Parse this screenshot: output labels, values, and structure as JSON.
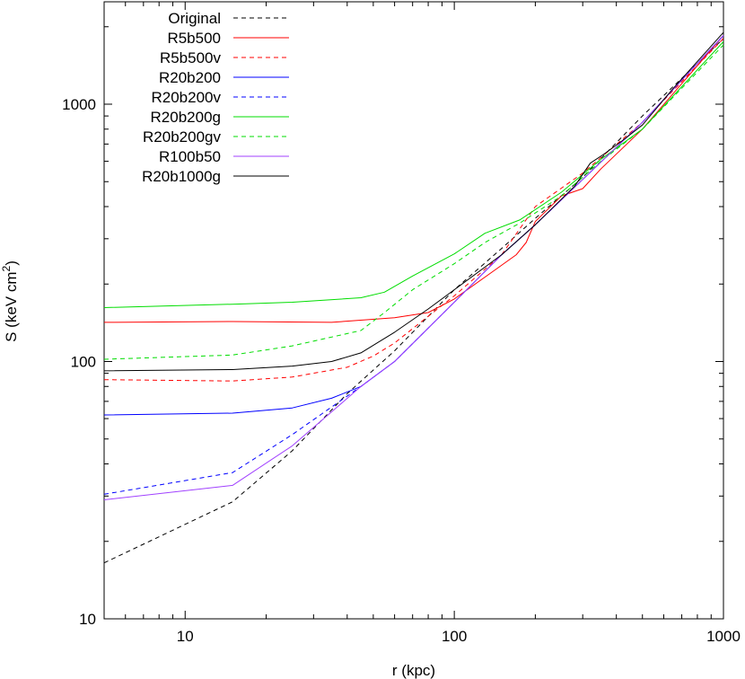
{
  "chart_data": {
    "type": "line",
    "xscale": "log",
    "yscale": "log",
    "xlim": [
      5,
      1000
    ],
    "ylim": [
      10,
      2500
    ],
    "xticks": [
      10,
      100,
      1000
    ],
    "yticks": [
      10,
      100,
      1000
    ],
    "xlabel": "r (kpc)",
    "ylabel": {
      "main": "S (keV cm",
      "sup": "2",
      "tail": ")"
    },
    "legend_position": "top-left",
    "grid": false,
    "series": [
      {
        "name": "Original",
        "color": "#000000",
        "dash": true,
        "x": [
          5,
          15,
          25,
          40,
          60,
          100,
          150,
          200,
          300,
          500,
          1000
        ],
        "y": [
          16.5,
          28.5,
          45,
          75,
          110,
          190,
          275,
          360,
          520,
          900,
          1800
        ]
      },
      {
        "name": "R5b500",
        "color": "#ff0000",
        "dash": false,
        "x": [
          5,
          15,
          35,
          60,
          80,
          100,
          140,
          170,
          185,
          200,
          250,
          300,
          350,
          500,
          1000
        ],
        "y": [
          142,
          143,
          142,
          148,
          155,
          175,
          225,
          260,
          290,
          350,
          440,
          470,
          560,
          800,
          1850
        ]
      },
      {
        "name": "R5b500v",
        "color": "#ff0000",
        "dash": true,
        "x": [
          5,
          15,
          25,
          40,
          50,
          60,
          80,
          100,
          150,
          200,
          300,
          500,
          1000
        ],
        "y": [
          85,
          84,
          87,
          95,
          105,
          118,
          150,
          180,
          260,
          400,
          540,
          850,
          1800
        ]
      },
      {
        "name": "R20b200",
        "color": "#0000ff",
        "dash": false,
        "x": [
          5,
          15,
          25,
          35,
          45,
          60,
          100,
          150,
          200,
          300,
          500,
          1000
        ],
        "y": [
          62,
          63,
          66,
          72,
          80,
          100,
          170,
          260,
          340,
          510,
          850,
          1850
        ]
      },
      {
        "name": "R20b200v",
        "color": "#0000ff",
        "dash": true,
        "x": [
          5,
          15,
          25,
          45,
          60,
          100,
          150,
          200,
          300,
          500,
          1000
        ],
        "y": [
          30.5,
          37,
          52,
          80,
          100,
          170,
          260,
          340,
          510,
          850,
          1850
        ]
      },
      {
        "name": "R20b200g",
        "color": "#00dd00",
        "dash": false,
        "x": [
          5,
          15,
          25,
          45,
          55,
          70,
          100,
          130,
          175,
          250,
          350,
          500,
          1000
        ],
        "y": [
          162,
          167,
          170,
          177,
          186,
          215,
          262,
          315,
          355,
          455,
          610,
          800,
          1750
        ]
      },
      {
        "name": "R20b200gv",
        "color": "#00dd00",
        "dash": true,
        "x": [
          5,
          15,
          25,
          45,
          55,
          70,
          100,
          130,
          175,
          250,
          350,
          500,
          1000
        ],
        "y": [
          102,
          106,
          115,
          132,
          155,
          190,
          240,
          290,
          345,
          440,
          600,
          800,
          1700
        ]
      },
      {
        "name": "R100b50",
        "color": "#a040ff",
        "dash": false,
        "x": [
          5,
          15,
          25,
          45,
          60,
          100,
          150,
          200,
          300,
          500,
          1000
        ],
        "y": [
          29,
          33,
          47,
          80,
          100,
          170,
          260,
          340,
          510,
          850,
          1850
        ]
      },
      {
        "name": "R20b1000g",
        "color": "#000000",
        "dash": false,
        "x": [
          5,
          15,
          25,
          35,
          45,
          60,
          80,
          100,
          150,
          200,
          280,
          320,
          360,
          420,
          500,
          650,
          1000
        ],
        "y": [
          92,
          93,
          96,
          100,
          108,
          130,
          160,
          190,
          260,
          340,
          480,
          590,
          640,
          720,
          830,
          1150,
          1900
        ]
      }
    ]
  }
}
